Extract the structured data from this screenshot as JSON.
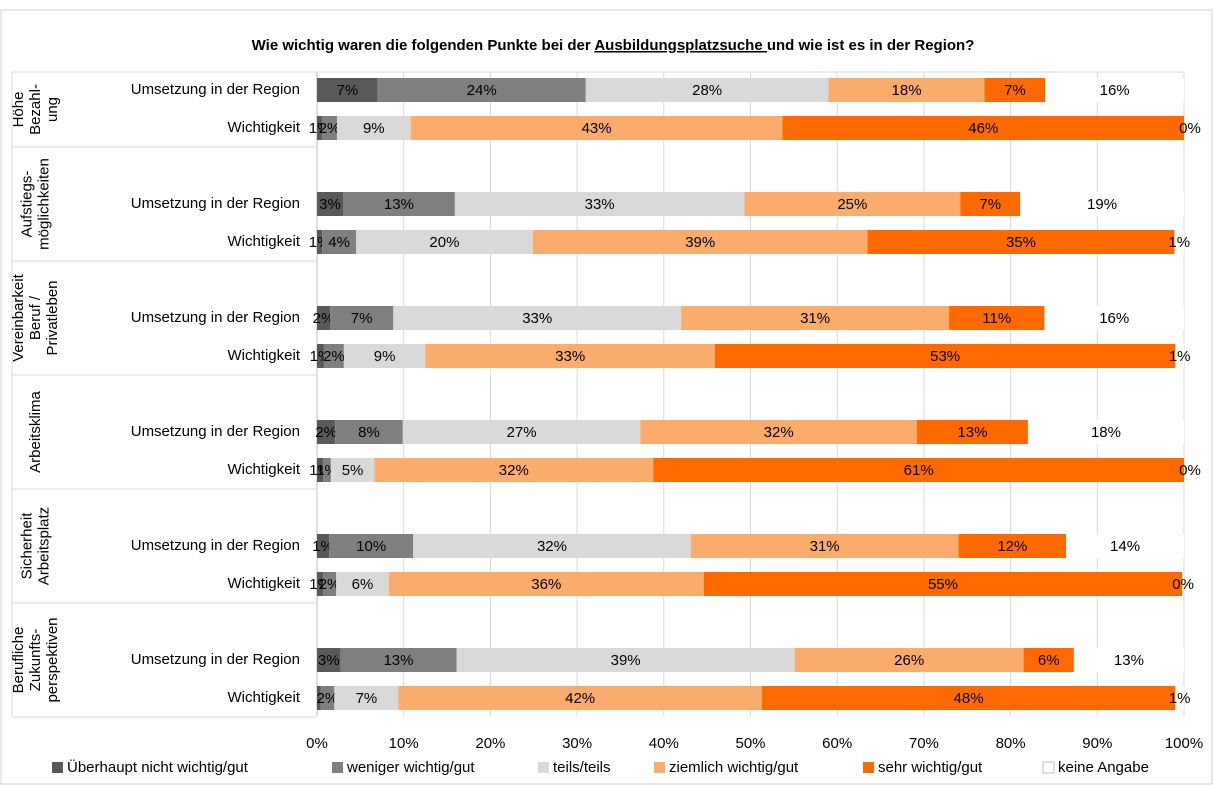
{
  "chart_data": {
    "type": "stacked_barh",
    "title": [
      "Wie wichtig waren die folgenden Punkte bei der ",
      "Ausbildungsplatzsuche ",
      "und wie ist es in der Region?"
    ],
    "groups": [
      [
        "Höhe",
        "Bezahl-",
        "ung"
      ],
      [
        "Aufstiegs-",
        "möglichkeiten"
      ],
      [
        "Vereinbarkeit",
        "Beruf /",
        "Privatleben"
      ],
      [
        "Arbeitsklima"
      ],
      [
        "Sicherheit",
        "Arbeitsplatz"
      ],
      [
        "Berufliche",
        "Zukunfts-",
        "perspektiven"
      ]
    ],
    "categories": [
      "Umsetzung in der Region",
      "Wichtigkeit",
      "Umsetzung in der Region",
      "Wichtigkeit",
      "Umsetzung in der Region",
      "Wichtigkeit",
      "Umsetzung in der Region",
      "Wichtigkeit",
      "Umsetzung in der Region",
      "Wichtigkeit",
      "Umsetzung in der Region",
      "Wichtigkeit"
    ],
    "series": [
      {
        "name": "Überhaupt nicht wichtig/gut",
        "color": "#595959",
        "values": [
          7,
          0.6,
          3,
          0.6,
          1.5,
          0.8,
          2.1,
          0.7,
          1.4,
          0.7,
          2.7,
          0.4
        ],
        "value_labels": [
          "7%",
          "1%",
          "3%",
          "1%",
          "2%",
          "1%",
          "2%",
          "1%",
          "1%",
          "1%",
          "3%",
          null
        ]
      },
      {
        "name": "weniger wichtig/gut",
        "color": "#7f7f7f",
        "values": [
          24,
          1.7,
          12.9,
          3.9,
          7.3,
          2.3,
          7.8,
          0.9,
          9.7,
          1.5,
          13.4,
          1.6
        ],
        "value_labels": [
          "24%",
          "2%",
          "13%",
          "4%",
          "7%",
          "2%",
          "8%",
          "1%",
          "10%",
          "2%",
          "13%",
          "2%"
        ]
      },
      {
        "name": "teils/teils",
        "color": "#d9d9d9",
        "values": [
          28,
          8.5,
          33.4,
          20.4,
          33.2,
          9.4,
          27.4,
          5.0,
          32,
          6.1,
          39,
          7.4
        ],
        "value_labels": [
          "28%",
          "9%",
          "33%",
          "20%",
          "33%",
          "9%",
          "27%",
          "5%",
          "32%",
          "6%",
          "39%",
          "7%"
        ]
      },
      {
        "name": "ziemlich wichtig/gut",
        "color": "#f9ac6b",
        "values": [
          18,
          42.9,
          24.9,
          38.6,
          30.9,
          33.4,
          31.9,
          32.2,
          30.9,
          36.3,
          26.4,
          41.9
        ],
        "value_labels": [
          "18%",
          "43%",
          "25%",
          "39%",
          "31%",
          "33%",
          "32%",
          "32%",
          "31%",
          "36%",
          "26%",
          "42%"
        ]
      },
      {
        "name": "sehr wichtig/gut",
        "color": "#ff6a00",
        "values": [
          7,
          46.3,
          6.9,
          35.4,
          11,
          53.1,
          12.8,
          61.2,
          12.4,
          55.2,
          5.8,
          47.7
        ],
        "value_labels": [
          "7%",
          "46%",
          "7%",
          "35%",
          "11%",
          "53%",
          "13%",
          "61%",
          "12%",
          "55%",
          "6%",
          "48%"
        ]
      },
      {
        "name": "keine Angabe",
        "color": "#ffffff",
        "values": [
          16,
          0,
          18.9,
          1.1,
          16.1,
          1.0,
          18,
          0,
          13.6,
          0.2,
          12.7,
          1.0
        ],
        "value_labels": [
          "16%",
          "0%",
          "19%",
          "1%",
          "16%",
          "1%",
          "18%",
          "0%",
          "14%",
          "0%",
          "13%",
          "1%"
        ]
      }
    ],
    "xlim": [
      0,
      100
    ],
    "xticks": [
      {
        "value": 0,
        "label": "0%"
      },
      {
        "value": 10,
        "label": "10%"
      },
      {
        "value": 20,
        "label": "20%"
      },
      {
        "value": 30,
        "label": "30%"
      },
      {
        "value": 40,
        "label": "40%"
      },
      {
        "value": 50,
        "label": "50%"
      },
      {
        "value": 60,
        "label": "60%"
      },
      {
        "value": 70,
        "label": "70%"
      },
      {
        "value": 80,
        "label": "80%"
      },
      {
        "value": 90,
        "label": "90%"
      },
      {
        "value": 100,
        "label": "100%"
      }
    ],
    "grid": true,
    "legend": "bottom"
  }
}
